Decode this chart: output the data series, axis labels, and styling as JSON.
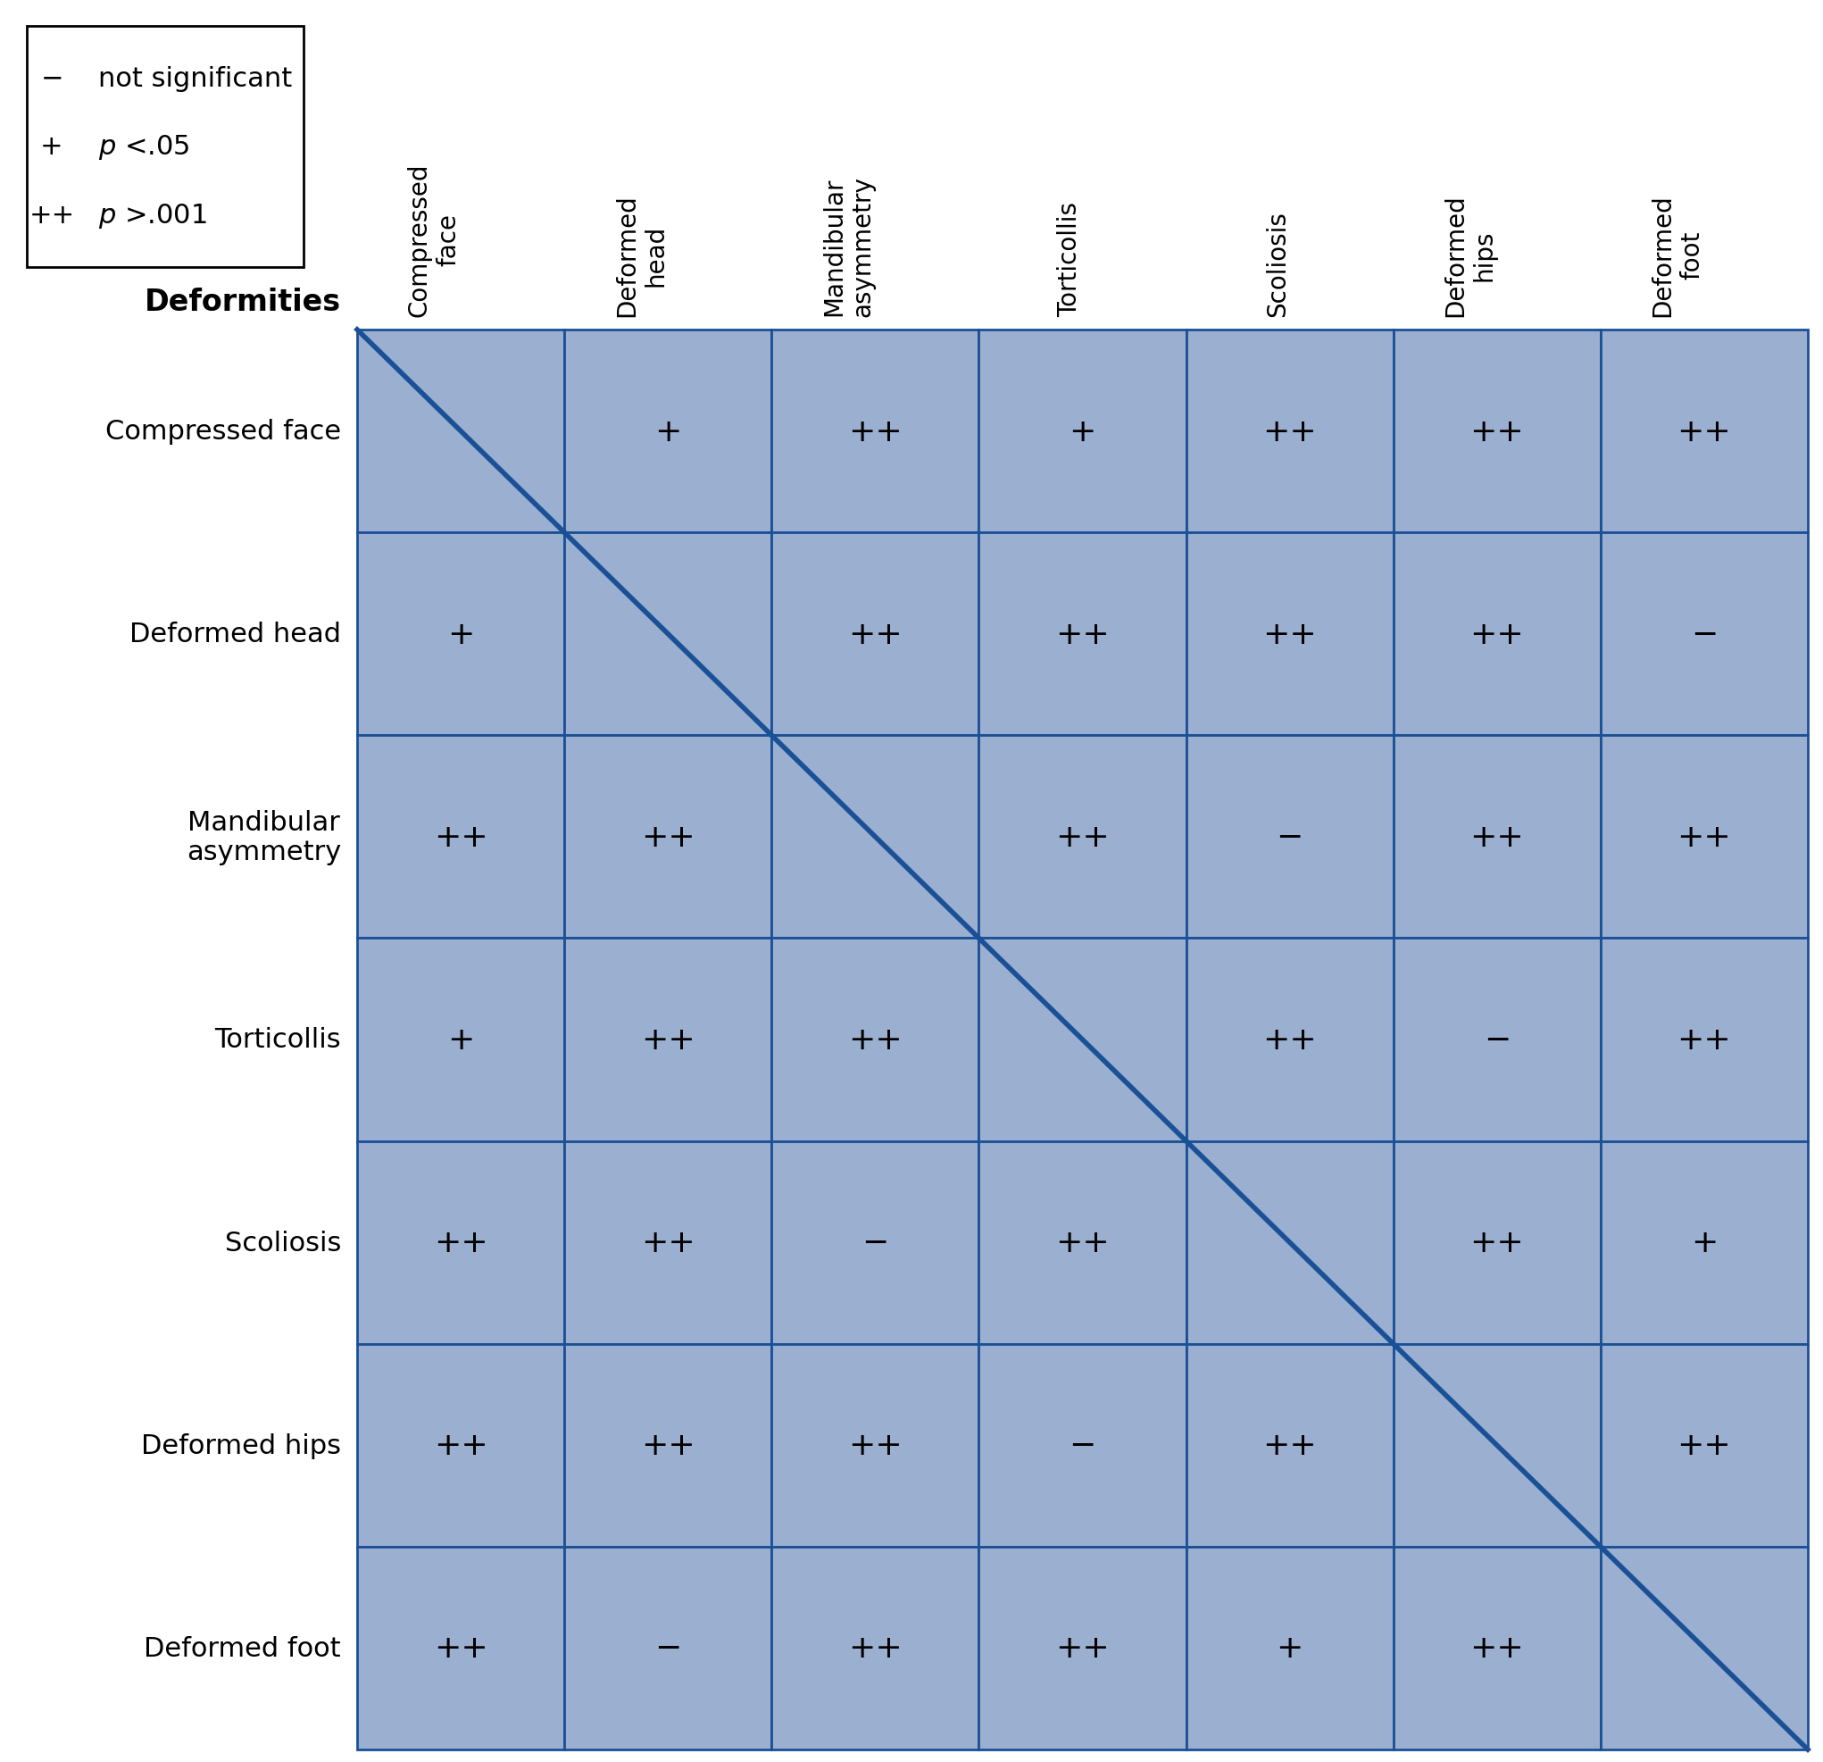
{
  "row_labels": [
    "Compressed face",
    "Deformed head",
    "Mandibular\nasymmetry",
    "Torticollis",
    "Scoliosis",
    "Deformed hips",
    "Deformed foot"
  ],
  "col_labels": [
    "Compressed\nface",
    "Deformed\nhead",
    "Mandibular\nasymmetry",
    "Torticollis",
    "Scoliosis",
    "Deformed\nhips",
    "Deformed\nfoot"
  ],
  "deformities_label": "Deformities",
  "matrix": [
    [
      "",
      "+",
      "++",
      "+",
      "++",
      "++",
      "++"
    ],
    [
      "+",
      "",
      "++",
      "++",
      "++",
      "++",
      "−"
    ],
    [
      "++",
      "++",
      "",
      "++",
      "−",
      "++",
      "++"
    ],
    [
      "+",
      "++",
      "++",
      "",
      "++",
      "−",
      "++"
    ],
    [
      "++",
      "++",
      "−",
      "++",
      "",
      "++",
      "+"
    ],
    [
      "++",
      "++",
      "++",
      "−",
      "++",
      "",
      "++"
    ],
    [
      "++",
      "−",
      "++",
      "++",
      "+",
      "++",
      ""
    ]
  ],
  "cell_bg_color": "#9BAFD0",
  "cell_border_color": "#1A5096",
  "diagonal_color": "#1A5096",
  "fig_bg_color": "#ffffff",
  "text_color": "#000000",
  "font_size_cell": 26,
  "font_size_row_label": 22,
  "font_size_col_label": 20,
  "font_size_deformities": 24,
  "font_size_legend": 22,
  "legend_items": [
    [
      "−",
      "not significant"
    ],
    [
      "+",
      "p <.05"
    ],
    [
      "++",
      "p >.001"
    ]
  ]
}
